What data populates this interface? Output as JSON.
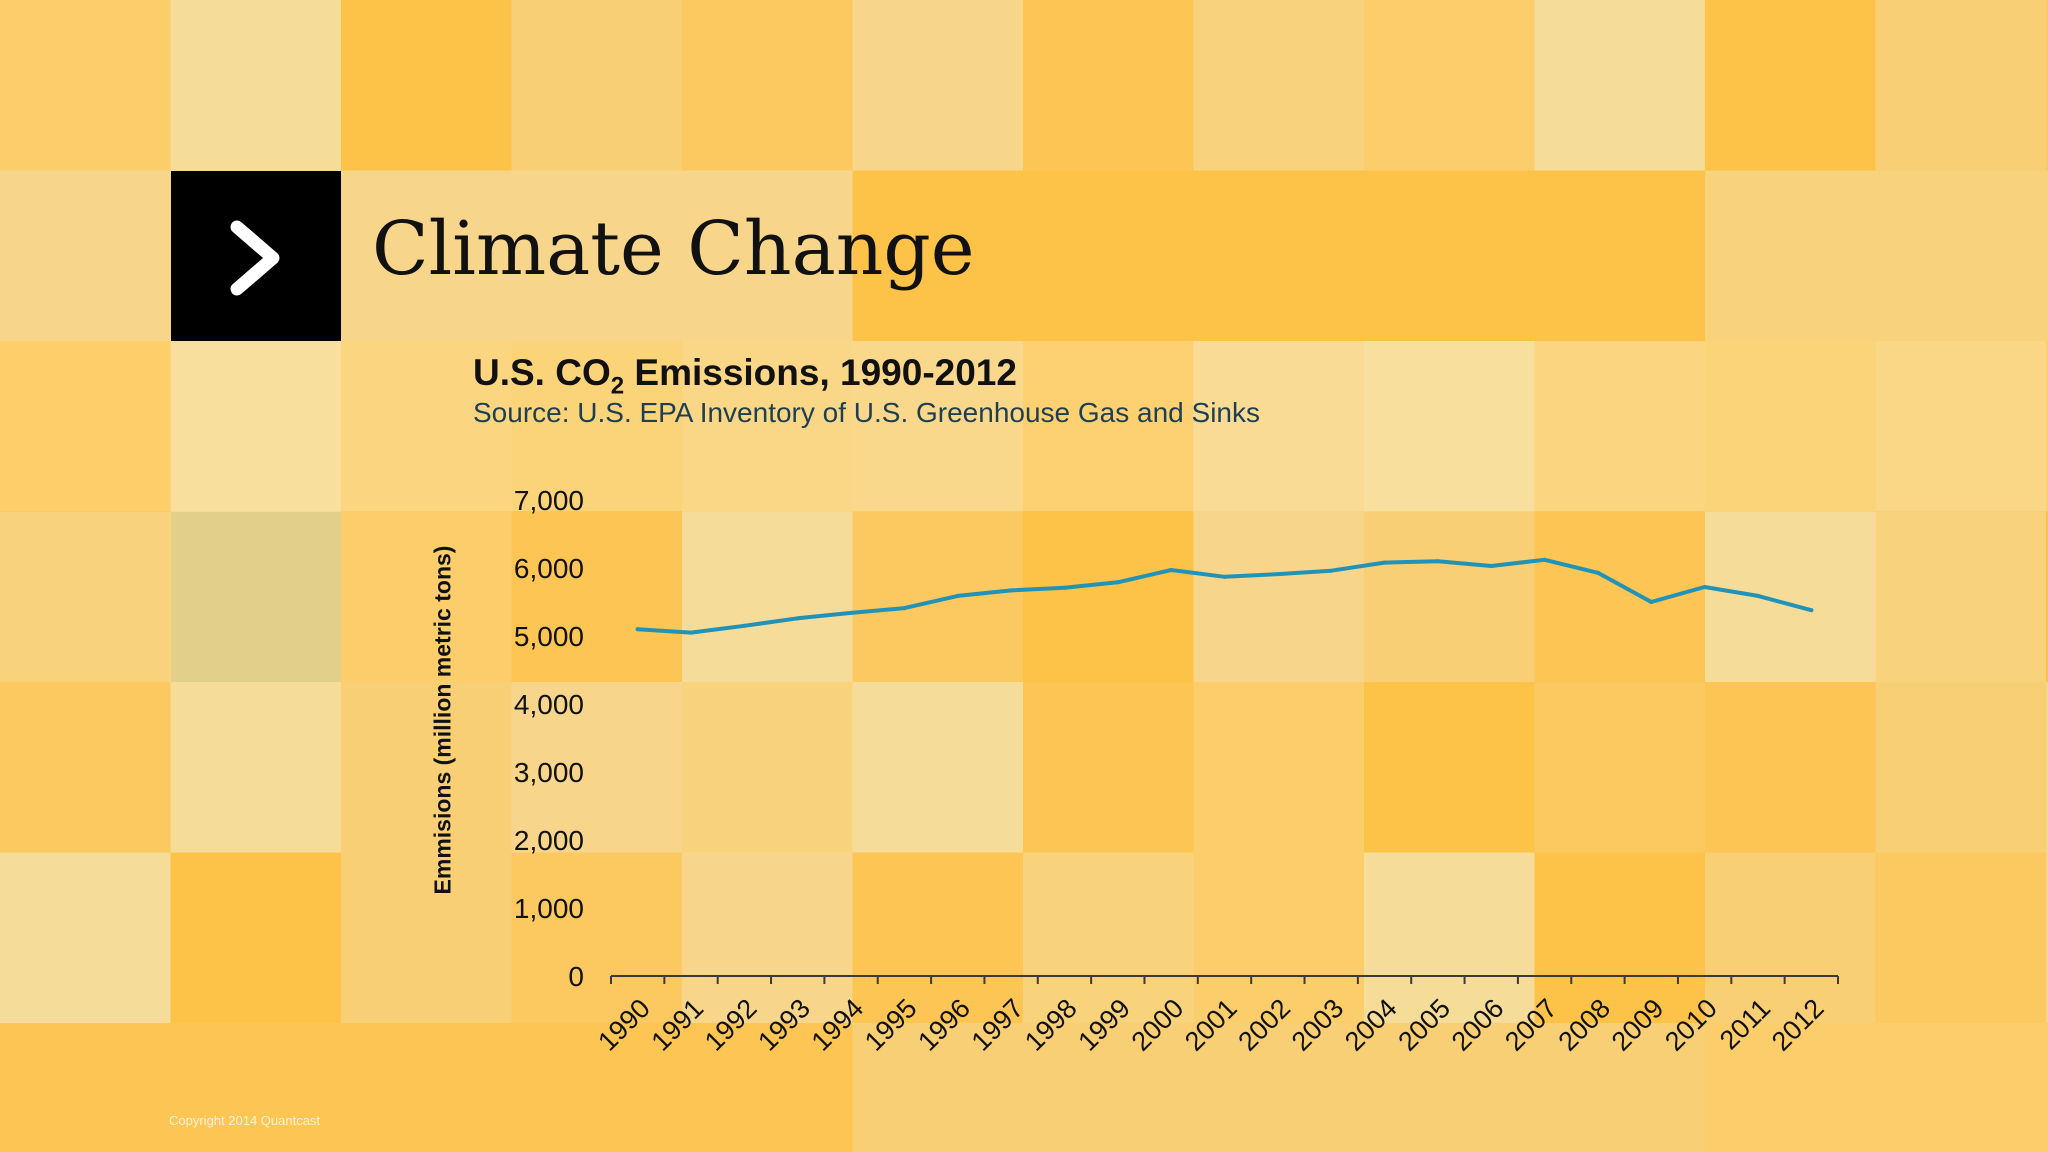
{
  "slide": {
    "title": "Climate Change",
    "copyright": "Copyright 2014 Quantcast",
    "badge_icon": "chevron-right-icon"
  },
  "colors": {
    "line": "#2193b8",
    "badge": "#000000",
    "background": "#fcc85a"
  },
  "chart_data": {
    "type": "line",
    "title_prefix": "U.S. CO",
    "title_subscript": "2",
    "title_suffix": " Emissions, 1990-2012",
    "subtitle": "Source: U.S. EPA Inventory of U.S. Greenhouse Gas and Sinks",
    "xlabel": "",
    "ylabel": "Emmisions (million metric tons)",
    "ylim": [
      0,
      7000
    ],
    "yticks": [
      0,
      1000,
      2000,
      3000,
      4000,
      5000,
      6000,
      7000
    ],
    "ytick_labels": [
      "0",
      "1,000",
      "2,000",
      "3,000",
      "4,000",
      "5,000",
      "6,000",
      "7,000"
    ],
    "categories": [
      "1990",
      "1991",
      "1992",
      "1993",
      "1994",
      "1995",
      "1996",
      "1997",
      "1998",
      "1999",
      "2000",
      "2001",
      "2002",
      "2003",
      "2004",
      "2005",
      "2006",
      "2007",
      "2008",
      "2009",
      "2010",
      "2011",
      "2012"
    ],
    "series": [
      {
        "values": [
          5100,
          5050,
          5150,
          5260,
          5340,
          5410,
          5590,
          5670,
          5710,
          5790,
          5970,
          5870,
          5910,
          5960,
          6080,
          6100,
          6030,
          6120,
          5930,
          5500,
          5720,
          5590,
          5380
        ]
      }
    ],
    "grid": false,
    "legend": "none"
  }
}
